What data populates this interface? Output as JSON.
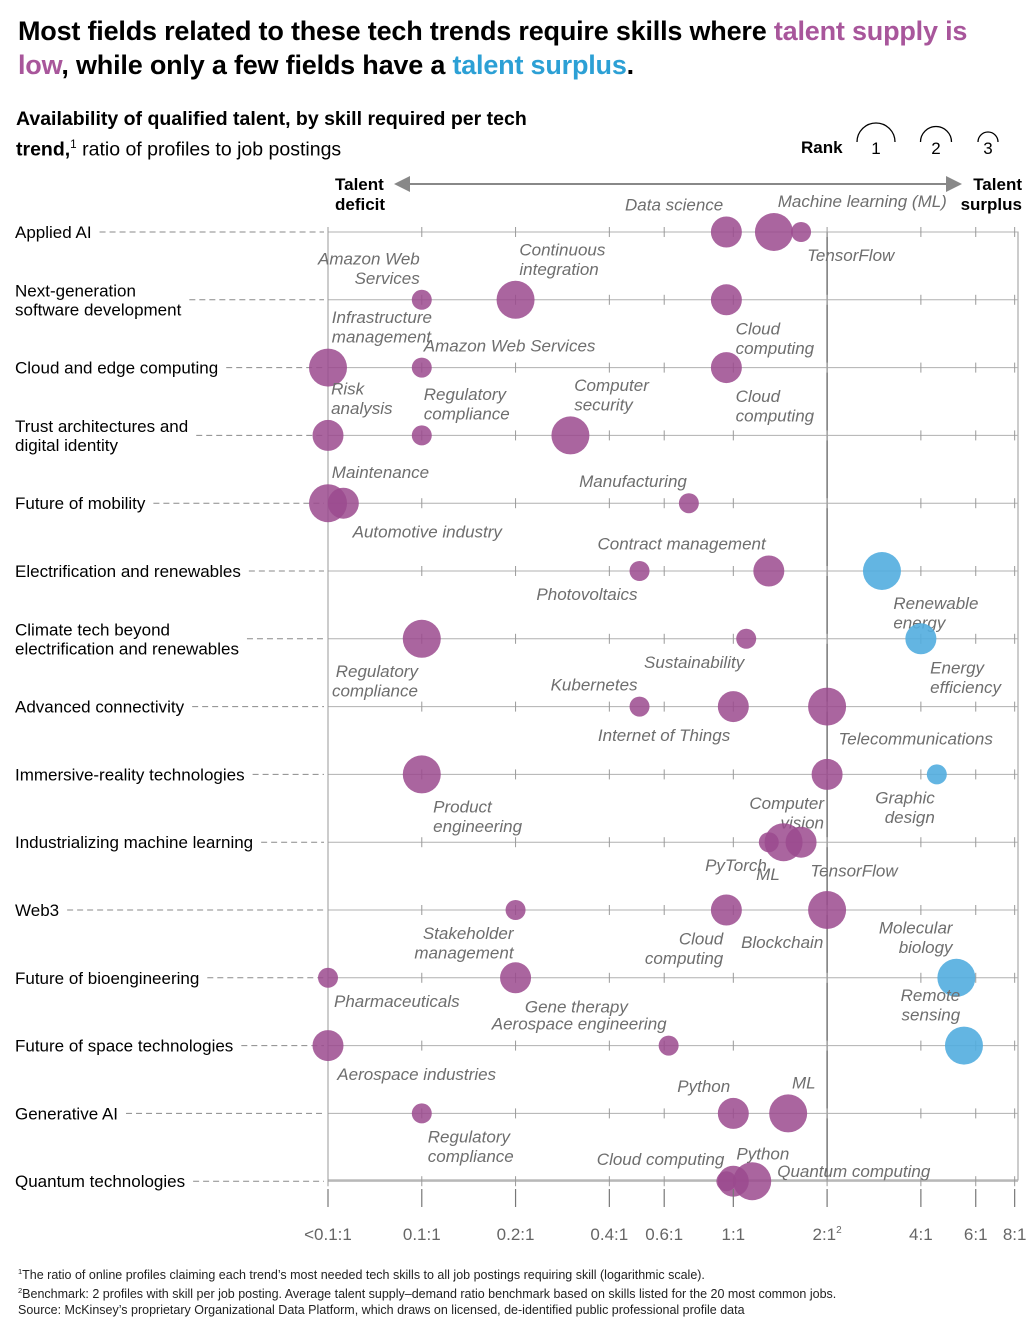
{
  "headline": {
    "part1": "Most fields related to these tech trends require skills where ",
    "hl_low": "talent supply is low",
    "part2": ", while only a few fields have a ",
    "hl_surplus": "talent surplus",
    "part3": "."
  },
  "subtitle": {
    "bold": "Availability of qualified talent, by skill required per tech trend,",
    "sup": "1",
    "normal": " ratio of profiles to job postings"
  },
  "rank_legend": {
    "label": "Rank",
    "ranks": [
      "1",
      "2",
      "3"
    ]
  },
  "axis_ends": {
    "deficit": [
      "Talent",
      "deficit"
    ],
    "surplus": [
      "Talent",
      "surplus"
    ]
  },
  "colors": {
    "deficit": "#9b4a8e",
    "surplus": "#52addf",
    "headline_purple": "#a8569b",
    "headline_blue": "#2ca0d5"
  },
  "footnotes": [
    {
      "sup": "1",
      "text": "The ratio of online profiles claiming each trend’s most needed tech skills to all job postings requiring skill (logarithmic scale)."
    },
    {
      "sup": "2",
      "text": "Benchmark: 2 profiles with skill per job posting. Average talent supply–demand ratio benchmark based on skills listed for the 20 most common jobs."
    },
    {
      "sup": "",
      "text": "Source: McKinsey’s proprietary Organizational Data Platform, which draws on licensed, de-identified public professional profile data"
    }
  ],
  "chart_data": {
    "type": "scatter",
    "x_scale": "log",
    "xlabel": "",
    "ylabel": "",
    "benchmark": {
      "x": 2,
      "label_sup": "2"
    },
    "x_ticks": [
      {
        "value": 0.05,
        "label": "<0.1:1"
      },
      {
        "value": 0.1,
        "label": "0.1:1"
      },
      {
        "value": 0.2,
        "label": "0.2:1"
      },
      {
        "value": 0.4,
        "label": "0.4:1"
      },
      {
        "value": 0.6,
        "label": "0.6:1"
      },
      {
        "value": 1,
        "label": "1:1"
      },
      {
        "value": 2,
        "label": "2:1"
      },
      {
        "value": 4,
        "label": "4:1"
      },
      {
        "value": 6,
        "label": "6:1"
      },
      {
        "value": 8,
        "label": "8:1"
      }
    ],
    "rows": [
      {
        "trend": [
          "Applied AI"
        ],
        "skills": [
          {
            "name": [
              "Data science"
            ],
            "x": 0.95,
            "rank": 2,
            "lab": "tl"
          },
          {
            "name": [
              "Machine learning (ML)"
            ],
            "x": 1.35,
            "rank": 1,
            "lab": "tr"
          },
          {
            "name": [
              "TensorFlow"
            ],
            "x": 1.65,
            "rank": 3,
            "lab": "br"
          }
        ]
      },
      {
        "trend": [
          "Next-generation",
          "software development"
        ],
        "skills": [
          {
            "name": [
              "Amazon Web",
              "Services"
            ],
            "x": 0.1,
            "rank": 3,
            "lab": "tl"
          },
          {
            "name": [
              "Continuous",
              "integration"
            ],
            "x": 0.2,
            "rank": 1,
            "lab": "tr"
          },
          {
            "name": [
              "Cloud",
              "computing"
            ],
            "x": 0.95,
            "rank": 2,
            "lab": "br"
          }
        ]
      },
      {
        "trend": [
          "Cloud and edge computing"
        ],
        "skills": [
          {
            "name": [
              "Infrastructure",
              "management"
            ],
            "x": 0.05,
            "rank": 1,
            "lab": "tr"
          },
          {
            "name": [
              "Amazon Web Services"
            ],
            "x": 0.1,
            "rank": 3,
            "lab": "tr"
          },
          {
            "name": [
              "Cloud",
              "computing"
            ],
            "x": 0.95,
            "rank": 2,
            "lab": "br"
          }
        ]
      },
      {
        "trend": [
          "Trust architectures and",
          "digital identity"
        ],
        "skills": [
          {
            "name": [
              "Risk",
              "analysis"
            ],
            "x": 0.05,
            "rank": 2,
            "lab": "tr"
          },
          {
            "name": [
              "Regulatory",
              "compliance"
            ],
            "x": 0.1,
            "rank": 3,
            "lab": "tr"
          },
          {
            "name": [
              "Computer",
              "security"
            ],
            "x": 0.3,
            "rank": 1,
            "lab": "tr"
          }
        ]
      },
      {
        "trend": [
          "Future of mobility"
        ],
        "skills": [
          {
            "name": [
              "Maintenance"
            ],
            "x": 0.05,
            "rank": 1,
            "lab": "tr"
          },
          {
            "name": [
              "Automotive industry"
            ],
            "x": 0.056,
            "rank": 2,
            "lab": "br"
          },
          {
            "name": [
              "Manufacturing"
            ],
            "x": 0.72,
            "rank": 3,
            "lab": "tl"
          }
        ]
      },
      {
        "trend": [
          "Electrification and renewables"
        ],
        "skills": [
          {
            "name": [
              "Photovoltaics"
            ],
            "x": 0.5,
            "rank": 3,
            "lab": "bl"
          },
          {
            "name": [
              "Contract management"
            ],
            "x": 1.3,
            "rank": 2,
            "lab": "tl"
          },
          {
            "name": [
              "Renewable",
              "energy"
            ],
            "x": 3.0,
            "rank": 1,
            "surplus": true,
            "lab": "br"
          }
        ]
      },
      {
        "trend": [
          "Climate tech beyond",
          "electrification and renewables"
        ],
        "skills": [
          {
            "name": [
              "Regulatory",
              "compliance"
            ],
            "x": 0.1,
            "rank": 1,
            "lab": "bl"
          },
          {
            "name": [
              "Sustainability"
            ],
            "x": 1.1,
            "rank": 3,
            "lab": "bl"
          },
          {
            "name": [
              "Energy",
              "efficiency"
            ],
            "x": 4.0,
            "rank": 2,
            "surplus": true,
            "lab": "br"
          }
        ]
      },
      {
        "trend": [
          "Advanced connectivity"
        ],
        "skills": [
          {
            "name": [
              "Kubernetes"
            ],
            "x": 0.5,
            "rank": 3,
            "lab": "tl"
          },
          {
            "name": [
              "Internet of Things"
            ],
            "x": 1.0,
            "rank": 2,
            "lab": "bl"
          },
          {
            "name": [
              "Telecommunications"
            ],
            "x": 2.0,
            "rank": 1,
            "lab": "br"
          }
        ]
      },
      {
        "trend": [
          "Immersive-reality technologies"
        ],
        "skills": [
          {
            "name": [
              "Product",
              "engineering"
            ],
            "x": 0.1,
            "rank": 1,
            "lab": "br"
          },
          {
            "name": [
              "Computer",
              "vision"
            ],
            "x": 2.0,
            "rank": 2,
            "lab": "bl"
          },
          {
            "name": [
              "Graphic",
              "design"
            ],
            "x": 4.5,
            "rank": 3,
            "surplus": true,
            "lab": "bl"
          }
        ]
      },
      {
        "trend": [
          "Industrializing machine learning"
        ],
        "skills": [
          {
            "name": [
              "PyTorch"
            ],
            "x": 1.3,
            "rank": 3,
            "lab": "bl"
          },
          {
            "name": [
              "ML"
            ],
            "x": 1.45,
            "rank": 1,
            "lab": "bl"
          },
          {
            "name": [
              "TensorFlow"
            ],
            "x": 1.65,
            "rank": 2,
            "lab": "br"
          }
        ]
      },
      {
        "trend": [
          "Web3"
        ],
        "skills": [
          {
            "name": [
              "Stakeholder",
              "management"
            ],
            "x": 0.2,
            "rank": 3,
            "lab": "bl"
          },
          {
            "name": [
              "Cloud",
              "computing"
            ],
            "x": 0.95,
            "rank": 2,
            "lab": "bl"
          },
          {
            "name": [
              "Blockchain"
            ],
            "x": 2.0,
            "rank": 1,
            "lab": "bl"
          }
        ]
      },
      {
        "trend": [
          "Future of bioengineering"
        ],
        "skills": [
          {
            "name": [
              "Pharmaceuticals"
            ],
            "x": 0.05,
            "rank": 3,
            "lab": "br"
          },
          {
            "name": [
              "Gene therapy"
            ],
            "x": 0.2,
            "rank": 2,
            "lab": "br"
          },
          {
            "name": [
              "Molecular",
              "biology"
            ],
            "x": 5.2,
            "rank": 1,
            "surplus": true,
            "lab": "tl"
          }
        ]
      },
      {
        "trend": [
          "Future of space technologies"
        ],
        "skills": [
          {
            "name": [
              "Aerospace industries"
            ],
            "x": 0.05,
            "rank": 2,
            "lab": "br"
          },
          {
            "name": [
              "Aerospace engineering"
            ],
            "x": 0.62,
            "rank": 3,
            "lab": "tl"
          },
          {
            "name": [
              "Remote",
              "sensing"
            ],
            "x": 5.5,
            "rank": 1,
            "surplus": true,
            "lab": "tl"
          }
        ]
      },
      {
        "trend": [
          "Generative AI"
        ],
        "skills": [
          {
            "name": [
              "Regulatory",
              "compliance"
            ],
            "x": 0.1,
            "rank": 3,
            "lab": "br"
          },
          {
            "name": [
              "Python"
            ],
            "x": 1.0,
            "rank": 2,
            "lab": "tl"
          },
          {
            "name": [
              "ML"
            ],
            "x": 1.5,
            "rank": 1,
            "lab": "tr"
          }
        ]
      },
      {
        "trend": [
          "Quantum technologies"
        ],
        "skills": [
          {
            "name": [
              "Cloud computing"
            ],
            "x": 0.95,
            "rank": 3,
            "lab": "tl"
          },
          {
            "name": [
              "Python"
            ],
            "x": 1.0,
            "rank": 2,
            "lab": "tr"
          },
          {
            "name": [
              "Quantum computing"
            ],
            "x": 1.15,
            "rank": 1,
            "lab": "r"
          }
        ]
      }
    ]
  }
}
